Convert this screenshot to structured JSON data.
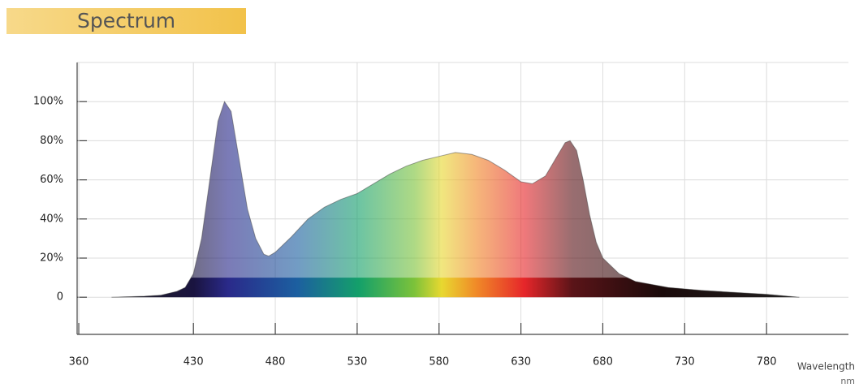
{
  "chart_data": {
    "type": "area",
    "title": "Spectrum",
    "x_label": "Wavelength",
    "x_unit": "nm",
    "x": [
      380,
      400,
      410,
      420,
      425,
      430,
      435,
      440,
      445,
      449,
      453,
      458,
      463,
      468,
      473,
      476,
      480,
      490,
      500,
      510,
      520,
      530,
      540,
      550,
      560,
      570,
      580,
      590,
      600,
      610,
      620,
      630,
      637,
      645,
      652,
      657,
      660,
      664,
      668,
      672,
      676,
      680,
      690,
      700,
      720,
      740,
      760,
      780,
      800
    ],
    "values": [
      0,
      0.5,
      1,
      3,
      5,
      12,
      30,
      60,
      90,
      100,
      95,
      70,
      45,
      30,
      22,
      21,
      23,
      31,
      40,
      46,
      50,
      53,
      58,
      63,
      67,
      70,
      72,
      74,
      73,
      70,
      65,
      59,
      58,
      62,
      72,
      79,
      80,
      75,
      60,
      42,
      28,
      20,
      12,
      8,
      5,
      3.5,
      2.5,
      1.5,
      0
    ],
    "color": "#444444",
    "xlim": [
      359,
      830
    ],
    "ylim": [
      -19,
      120
    ],
    "xticks": [
      360,
      430,
      480,
      530,
      580,
      630,
      680,
      730,
      780
    ],
    "yticks": [
      0,
      {
        "value": 20,
        "label": "20%"
      },
      {
        "value": 40,
        "label": "40%"
      },
      {
        "value": 60,
        "label": "60%"
      },
      {
        "value": 80,
        "label": "80%"
      },
      {
        "value": 100,
        "label": "100%"
      }
    ],
    "grid": true
  }
}
